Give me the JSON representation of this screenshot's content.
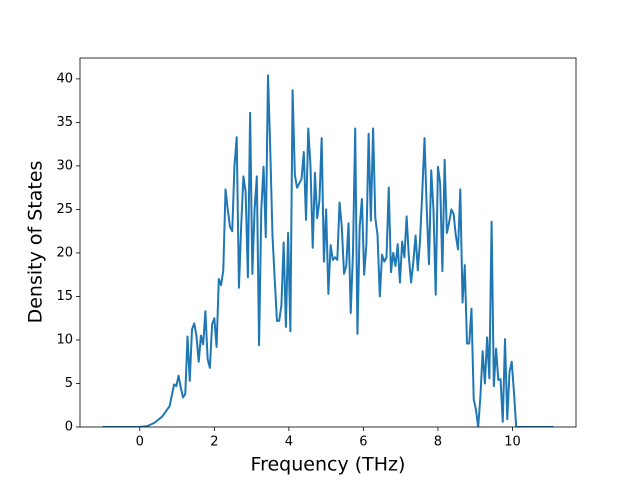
{
  "chart_data": {
    "type": "line",
    "xlabel": "Frequency (THz)",
    "ylabel": "Density of States",
    "x": [
      -1,
      0,
      0.2,
      0.4,
      0.6,
      0.8,
      0.92,
      0.98,
      1.04,
      1.1,
      1.16,
      1.22,
      1.28,
      1.34,
      1.4,
      1.46,
      1.52,
      1.58,
      1.64,
      1.7,
      1.76,
      1.82,
      1.88,
      1.94,
      2.0,
      2.06,
      2.12,
      2.18,
      2.24,
      2.3,
      2.36,
      2.42,
      2.48,
      2.54,
      2.6,
      2.66,
      2.72,
      2.78,
      2.84,
      2.9,
      2.96,
      3.02,
      3.08,
      3.14,
      3.2,
      3.26,
      3.32,
      3.38,
      3.44,
      3.5,
      3.56,
      3.62,
      3.68,
      3.74,
      3.8,
      3.86,
      3.92,
      3.98,
      4.04,
      4.1,
      4.16,
      4.22,
      4.28,
      4.34,
      4.4,
      4.46,
      4.52,
      4.58,
      4.64,
      4.7,
      4.76,
      4.82,
      4.88,
      4.94,
      5.0,
      5.06,
      5.12,
      5.18,
      5.24,
      5.3,
      5.36,
      5.42,
      5.48,
      5.54,
      5.6,
      5.66,
      5.72,
      5.78,
      5.84,
      5.9,
      5.96,
      6.02,
      6.08,
      6.14,
      6.2,
      6.26,
      6.32,
      6.38,
      6.44,
      6.5,
      6.56,
      6.62,
      6.68,
      6.74,
      6.8,
      6.86,
      6.92,
      6.98,
      7.04,
      7.1,
      7.16,
      7.22,
      7.28,
      7.34,
      7.4,
      7.46,
      7.52,
      7.58,
      7.64,
      7.7,
      7.76,
      7.82,
      7.88,
      7.94,
      8.0,
      8.06,
      8.12,
      8.18,
      8.24,
      8.3,
      8.36,
      8.42,
      8.48,
      8.54,
      8.6,
      8.66,
      8.72,
      8.78,
      8.84,
      8.9,
      8.96,
      9.02,
      9.08,
      9.14,
      9.2,
      9.26,
      9.32,
      9.38,
      9.44,
      9.5,
      9.56,
      9.62,
      9.68,
      9.74,
      9.8,
      9.86,
      9.92,
      9.98,
      10.04,
      10.1,
      10.5,
      11.1
    ],
    "series": [
      {
        "color": "#1f77b4",
        "values": [
          0,
          0,
          0.1,
          0.5,
          1.2,
          2.4,
          4.9,
          4.7,
          5.9,
          4.5,
          3.4,
          3.8,
          10.4,
          5.3,
          11.2,
          11.9,
          10.5,
          7.5,
          10.5,
          9.5,
          13.3,
          7.8,
          6.8,
          11.8,
          12.5,
          9.2,
          17,
          16.3,
          18,
          27.3,
          25,
          23,
          22.5,
          30,
          33.3,
          16,
          23,
          28.8,
          27,
          17.2,
          36.1,
          17.6,
          25,
          28.8,
          9.4,
          25,
          29.9,
          21.8,
          40.4,
          32,
          22,
          17,
          12.2,
          12.2,
          14,
          21.2,
          11.5,
          22.3,
          11,
          38.7,
          29,
          27.5,
          28,
          28.5,
          31.6,
          23.8,
          34.3,
          30,
          20.6,
          29.2,
          24,
          26,
          33.2,
          19,
          25,
          15.3,
          20.9,
          19.2,
          19.5,
          19.2,
          25.8,
          23,
          17.6,
          18.5,
          23.4,
          13.1,
          20,
          34.3,
          10.7,
          23,
          26.2,
          17.5,
          21,
          33.7,
          23.7,
          34.3,
          24,
          22,
          15,
          19.8,
          19,
          19.5,
          27.5,
          17.8,
          20,
          18.5,
          21,
          16.6,
          21.3,
          19.5,
          24.2,
          19.5,
          16.6,
          19,
          22,
          18,
          21.5,
          27,
          33.2,
          25,
          18.7,
          29.5,
          25,
          15.2,
          29.9,
          28,
          17.9,
          30.7,
          22.3,
          23.5,
          25,
          24.5,
          22,
          20.4,
          27.3,
          14.3,
          18.6,
          9.6,
          9.6,
          13.6,
          3.2,
          2,
          0,
          3.5,
          8.7,
          5,
          10.3,
          5.6,
          23.6,
          4.7,
          9,
          5.4,
          5.5,
          0.6,
          10.1,
          0.9,
          6.3,
          7.5,
          4,
          0,
          0,
          0
        ]
      }
    ],
    "xlim": [
      -1.605,
      11.705
    ],
    "xticks": [
      0,
      2,
      4,
      6,
      8,
      10
    ],
    "ylim": [
      0,
      42.4
    ],
    "yticks": [
      0,
      5,
      10,
      15,
      20,
      25,
      30,
      35,
      40
    ]
  }
}
